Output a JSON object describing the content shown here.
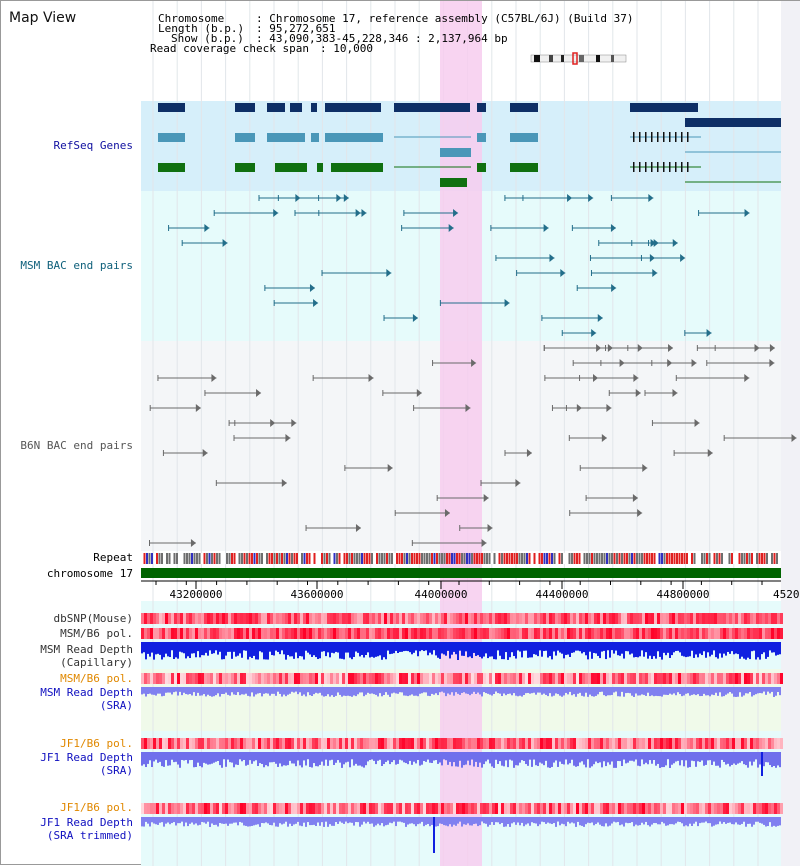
{
  "title": "Map View",
  "info": {
    "chromosome_key": "Chromosome",
    "chromosome_val": ": Chromosome 17, reference assembly (C57BL/6J) (Build 37)",
    "length_key": "Length (b.p.)",
    "length_val": ": 95,272,651",
    "show_key": "Show (b.p.)",
    "show_val": ": 43,090,383-45,228,346 : 2,137,964 bp",
    "span_key": "Read coverage check span",
    "span_val": ": 10,000"
  },
  "tracks": {
    "refseq": "RefSeq Genes",
    "msm_bac": "MSM BAC end pairs",
    "b6n_bac": "B6N BAC end pairs",
    "repeat": "Repeat",
    "chromosome": "chromosome 17",
    "dbsnp": "dbSNP(Mouse)",
    "msm_pol": "MSM/B6 pol.",
    "msm_depth_cap_1": "MSM Read Depth",
    "msm_depth_cap_2": "(Capillary)",
    "msm_pol_2": "MSM/B6 pol.",
    "msm_depth_sra_1": "MSM Read Depth",
    "msm_depth_sra_2": "(SRA)",
    "jf1_pol": "JF1/B6 pol.",
    "jf1_depth_1": "JF1 Read Depth",
    "jf1_depth_2": "(SRA)",
    "jf1_pol_2": "JF1/B6 pol.",
    "jf1_trim_1": "JF1 Read Depth",
    "jf1_trim_2": "(SRA trimmed)"
  },
  "axis": {
    "ticks": [
      "43200000",
      "43600000",
      "44000000",
      "44400000",
      "44800000",
      "4520"
    ]
  },
  "colors": {
    "refseq_bg": "#d6effa",
    "msm_bg": "#e6fbfb",
    "highlight": "#f7cdef",
    "refseq_dark": "#0e2f66",
    "refseq_mid": "#4a97b8",
    "refseq_green": "#107010",
    "msm_line": "#236e8a",
    "b6n_line": "#6a6a6a",
    "chrom_green": "#006400",
    "depth_blue": "#1020e0",
    "depth_light": "#8080f0",
    "pol_red": "#f04040"
  }
}
